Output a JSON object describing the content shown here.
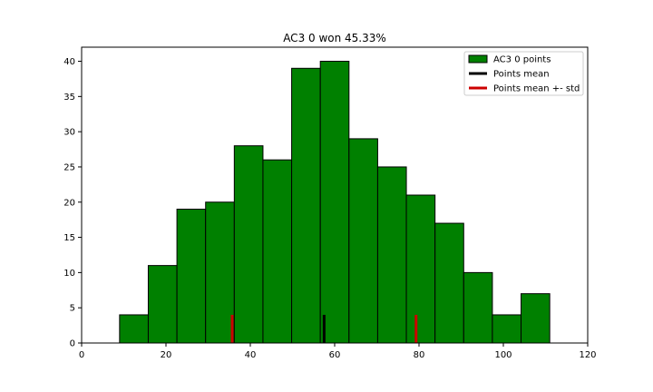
{
  "chart_data": {
    "type": "bar",
    "title": "AC3 0 won 45.33%",
    "xlabel": "",
    "ylabel": "",
    "xlim": [
      0,
      120
    ],
    "ylim": [
      0,
      42
    ],
    "x_ticks": [
      0,
      20,
      40,
      60,
      80,
      100,
      120
    ],
    "y_ticks": [
      0,
      5,
      10,
      15,
      20,
      25,
      30,
      35,
      40
    ],
    "grid": false,
    "legend_position": "top-right",
    "bin_edges": [
      9,
      15.8,
      22.6,
      29.4,
      36.2,
      43,
      49.8,
      56.6,
      63.4,
      70.2,
      77,
      83.8,
      90.6,
      97.4,
      104.2,
      111
    ],
    "series": [
      {
        "name": "AC3 0 points",
        "type": "histogram",
        "color": "#008000",
        "values": [
          4,
          11,
          19,
          20,
          28,
          26,
          39,
          40,
          29,
          25,
          21,
          17,
          10,
          4,
          7
        ]
      }
    ],
    "markers": [
      {
        "name": "Points mean",
        "color": "#000000",
        "x": 57.5,
        "height": 4
      },
      {
        "name": "Points mean +- std",
        "color": "#cc0000",
        "x": 35.7,
        "height": 4
      },
      {
        "name": "Points mean +- std",
        "color": "#cc0000",
        "x": 79.3,
        "height": 4
      }
    ],
    "legend": [
      {
        "label": "AC3 0 points",
        "kind": "patch",
        "color": "#008000"
      },
      {
        "label": "Points mean",
        "kind": "line",
        "color": "#000000"
      },
      {
        "label": "Points mean +- std",
        "kind": "line",
        "color": "#cc0000"
      }
    ]
  }
}
